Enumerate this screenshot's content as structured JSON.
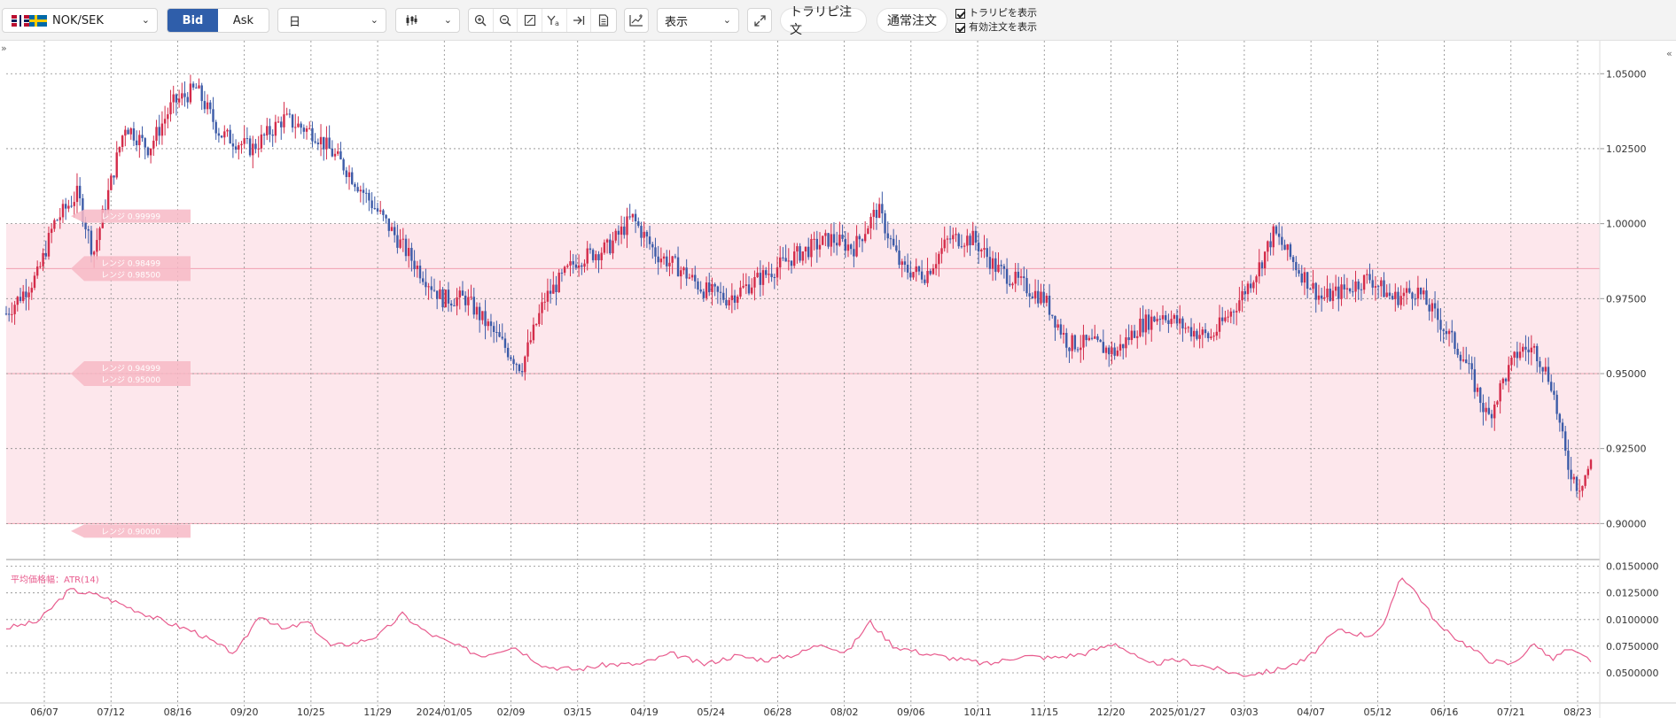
{
  "toolbar": {
    "symbol": "NOK/SEK",
    "bid_label": "Bid",
    "ask_label": "Ask",
    "period": "日",
    "display_label": "表示",
    "trap_order_label": "トラリピ注文",
    "normal_order_label": "通常注文",
    "show_trap_label": "トラリピを表示",
    "show_active_orders_label": "有効注文を表示",
    "tool_icons": [
      "zoom-in-icon",
      "zoom-out-icon",
      "fit-icon",
      "crosshair-icon",
      "jump-to-latest-icon",
      "document-icon"
    ]
  },
  "colors": {
    "accent": "#2f5eaa",
    "up_candle": "#d42c4a",
    "down_candle": "#3c5ba8",
    "range_band": "#fde7ec",
    "range_line": "#f0a0b0",
    "atr_line": "#e85c8e"
  },
  "chart_data": [
    {
      "type": "candlestick",
      "y_ticks": [
        "0.90000",
        "0.92500",
        "0.95000",
        "0.97500",
        "1.00000",
        "1.02500",
        "1.05000"
      ],
      "ylim": [
        0.888,
        1.061
      ],
      "x_labels": [
        "06/07",
        "07/12",
        "08/16",
        "09/20",
        "10/25",
        "11/29",
        "2024/01/05",
        "02/09",
        "03/15",
        "04/19",
        "05/24",
        "06/28",
        "08/02",
        "09/06",
        "10/11",
        "11/15",
        "12/20",
        "2025/01/27",
        "03/03",
        "04/07",
        "05/12",
        "06/16",
        "07/21",
        "08/23"
      ],
      "range_band": {
        "top": 1.0,
        "bottom": 0.9
      },
      "range_lines": [
        0.985,
        0.95,
        0.9
      ],
      "range_labels": [
        {
          "y": 1.0025,
          "lines": [
            "レンジ 0.99999"
          ]
        },
        {
          "y": 0.985,
          "lines": [
            "レンジ 0.98499",
            "レンジ 0.98500"
          ]
        },
        {
          "y": 0.95,
          "lines": [
            "レンジ 0.94999",
            "レンジ 0.95000"
          ]
        },
        {
          "y": 0.8975,
          "lines": [
            "レンジ 0.90000"
          ]
        }
      ],
      "close_points": [
        [
          0.0,
          0.97
        ],
        [
          0.02,
          0.983
        ],
        [
          0.03,
          1.0
        ],
        [
          0.045,
          1.01
        ],
        [
          0.055,
          0.99
        ],
        [
          0.075,
          1.033
        ],
        [
          0.09,
          1.025
        ],
        [
          0.105,
          1.04
        ],
        [
          0.12,
          1.045
        ],
        [
          0.135,
          1.03
        ],
        [
          0.155,
          1.025
        ],
        [
          0.175,
          1.035
        ],
        [
          0.195,
          1.03
        ],
        [
          0.215,
          1.018
        ],
        [
          0.24,
          1.0
        ],
        [
          0.26,
          0.985
        ],
        [
          0.275,
          0.975
        ],
        [
          0.29,
          0.975
        ],
        [
          0.31,
          0.962
        ],
        [
          0.325,
          0.952
        ],
        [
          0.34,
          0.975
        ],
        [
          0.36,
          0.988
        ],
        [
          0.38,
          0.992
        ],
        [
          0.395,
          1.002
        ],
        [
          0.41,
          0.99
        ],
        [
          0.425,
          0.985
        ],
        [
          0.44,
          0.978
        ],
        [
          0.455,
          0.975
        ],
        [
          0.47,
          0.98
        ],
        [
          0.485,
          0.985
        ],
        [
          0.5,
          0.99
        ],
        [
          0.52,
          0.995
        ],
        [
          0.535,
          0.992
        ],
        [
          0.55,
          1.005
        ],
        [
          0.565,
          0.985
        ],
        [
          0.58,
          0.983
        ],
        [
          0.595,
          0.995
        ],
        [
          0.61,
          0.995
        ],
        [
          0.625,
          0.985
        ],
        [
          0.64,
          0.98
        ],
        [
          0.655,
          0.975
        ],
        [
          0.67,
          0.96
        ],
        [
          0.685,
          0.96
        ],
        [
          0.7,
          0.957
        ],
        [
          0.715,
          0.966
        ],
        [
          0.73,
          0.97
        ],
        [
          0.745,
          0.965
        ],
        [
          0.76,
          0.962
        ],
        [
          0.775,
          0.972
        ],
        [
          0.79,
          0.985
        ],
        [
          0.8,
          0.997
        ],
        [
          0.815,
          0.985
        ],
        [
          0.83,
          0.975
        ],
        [
          0.845,
          0.978
        ],
        [
          0.86,
          0.982
        ],
        [
          0.875,
          0.975
        ],
        [
          0.89,
          0.978
        ],
        [
          0.905,
          0.967
        ],
        [
          0.92,
          0.955
        ],
        [
          0.935,
          0.935
        ],
        [
          0.945,
          0.948
        ],
        [
          0.955,
          0.958
        ],
        [
          0.965,
          0.958
        ],
        [
          0.975,
          0.947
        ],
        [
          0.985,
          0.92
        ],
        [
          0.992,
          0.912
        ],
        [
          1.0,
          0.92
        ]
      ],
      "close_points_tail": [
        [
          1.0,
          0.92
        ]
      ]
    },
    {
      "type": "line",
      "title": "平均価格幅：ATR(14)",
      "y_ticks": [
        "0.0500000",
        "0.0750000",
        "0.0100000",
        "0.0125000",
        "0.0150000"
      ],
      "ylim": [
        0.0045,
        0.0153
      ],
      "points": [
        [
          0.0,
          0.0092
        ],
        [
          0.02,
          0.0098
        ],
        [
          0.04,
          0.0128
        ],
        [
          0.06,
          0.0122
        ],
        [
          0.08,
          0.011
        ],
        [
          0.1,
          0.0098
        ],
        [
          0.12,
          0.0088
        ],
        [
          0.135,
          0.0075
        ],
        [
          0.145,
          0.0068
        ],
        [
          0.16,
          0.0105
        ],
        [
          0.175,
          0.009
        ],
        [
          0.19,
          0.0098
        ],
        [
          0.205,
          0.0075
        ],
        [
          0.22,
          0.0078
        ],
        [
          0.235,
          0.0085
        ],
        [
          0.25,
          0.0105
        ],
        [
          0.265,
          0.0088
        ],
        [
          0.28,
          0.0078
        ],
        [
          0.3,
          0.0066
        ],
        [
          0.32,
          0.0075
        ],
        [
          0.34,
          0.0056
        ],
        [
          0.36,
          0.0053
        ],
        [
          0.38,
          0.0058
        ],
        [
          0.4,
          0.0058
        ],
        [
          0.42,
          0.0068
        ],
        [
          0.44,
          0.0058
        ],
        [
          0.46,
          0.0066
        ],
        [
          0.48,
          0.0062
        ],
        [
          0.5,
          0.0068
        ],
        [
          0.515,
          0.0078
        ],
        [
          0.53,
          0.0068
        ],
        [
          0.545,
          0.0098
        ],
        [
          0.56,
          0.0075
        ],
        [
          0.58,
          0.0068
        ],
        [
          0.6,
          0.0063
        ],
        [
          0.62,
          0.0058
        ],
        [
          0.64,
          0.0066
        ],
        [
          0.66,
          0.0064
        ],
        [
          0.68,
          0.0068
        ],
        [
          0.7,
          0.0078
        ],
        [
          0.72,
          0.0058
        ],
        [
          0.74,
          0.0062
        ],
        [
          0.76,
          0.0055
        ],
        [
          0.78,
          0.0048
        ],
        [
          0.8,
          0.0052
        ],
        [
          0.82,
          0.0062
        ],
        [
          0.84,
          0.009
        ],
        [
          0.86,
          0.0085
        ],
        [
          0.87,
          0.0095
        ],
        [
          0.88,
          0.0142
        ],
        [
          0.89,
          0.0125
        ],
        [
          0.905,
          0.0092
        ],
        [
          0.92,
          0.0078
        ],
        [
          0.935,
          0.0062
        ],
        [
          0.95,
          0.0058
        ],
        [
          0.965,
          0.0078
        ],
        [
          0.975,
          0.0062
        ],
        [
          0.985,
          0.0072
        ],
        [
          1.0,
          0.0062
        ]
      ]
    }
  ]
}
